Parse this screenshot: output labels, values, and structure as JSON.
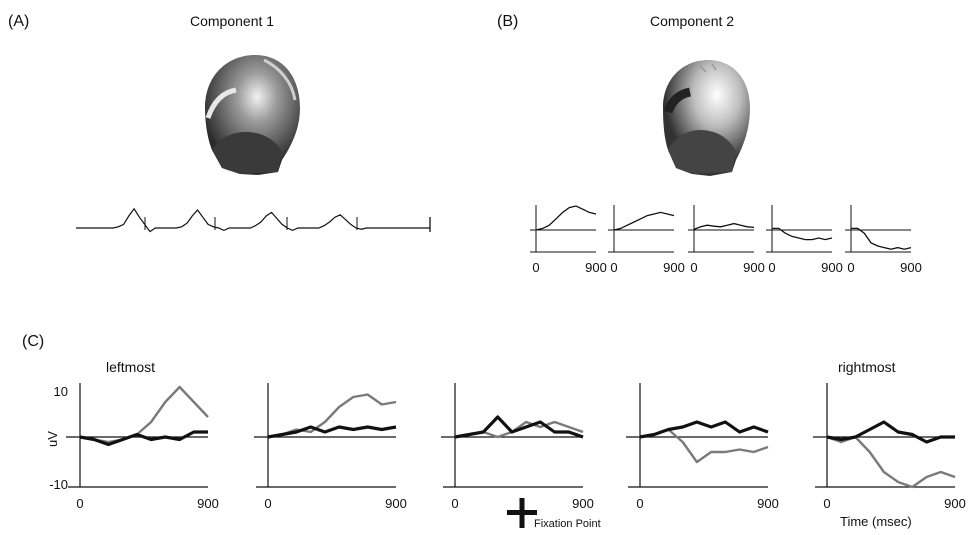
{
  "panels": {
    "a": {
      "label": "(A)",
      "title": "Component 1"
    },
    "b": {
      "label": "(B)",
      "title": "Component 2"
    },
    "c": {
      "label": "(C)",
      "left_label": "leftmost",
      "right_label": "rightmost",
      "ylabel": "uV",
      "y_max_label": "10",
      "y_min_label": "-10",
      "xlabel": "Time (msec)",
      "fixation_label": "Fixation Point"
    }
  },
  "tick_labels": {
    "x_start": "0",
    "x_end": "900"
  },
  "colors": {
    "ink": "#111111",
    "light_trace": "#7a7a7a"
  },
  "chart_data": [
    {
      "type": "line",
      "title": "Component 1",
      "series": [
        {
          "values": [
            0,
            0,
            0,
            0,
            0,
            0,
            0,
            0,
            0.1,
            0.3,
            1,
            1.6,
            0.9,
            0.3,
            -0.3,
            0,
            0,
            0,
            0,
            0,
            0.1,
            0.4,
            1,
            1.5,
            0.9,
            0.3,
            0.1,
            0,
            -0.2,
            0,
            0,
            0,
            0,
            0,
            0.2,
            0.5,
            1,
            1.3,
            0.8,
            0.3,
            0,
            -0.2,
            0,
            0,
            0,
            0,
            0,
            0.2,
            0.5,
            0.9,
            1.1,
            0.7,
            0.3,
            0,
            -0.1,
            0,
            0,
            0,
            0,
            0,
            0,
            0,
            0,
            0,
            0,
            0,
            0,
            0
          ]
        }
      ]
    },
    {
      "type": "line",
      "title": "Component 2",
      "x": [
        0,
        100,
        200,
        300,
        400,
        500,
        600,
        700,
        800,
        900
      ],
      "xlim": [
        0,
        900
      ],
      "series": [
        {
          "values": [
            0,
            0.5,
            1.5,
            3.5,
            5.5,
            7,
            7.5,
            6.5,
            5.5,
            5
          ]
        },
        {
          "values": [
            0,
            0.5,
            1.5,
            2.5,
            3.5,
            4.5,
            5,
            5.5,
            5,
            4.5
          ]
        },
        {
          "values": [
            0.2,
            1,
            1.5,
            1.2,
            1,
            1.5,
            2,
            1.5,
            1,
            0.8
          ]
        },
        {
          "values": [
            0.5,
            0.5,
            -1,
            -2,
            -2.5,
            -3,
            -3,
            -2.5,
            -3,
            -2.5
          ]
        },
        {
          "values": [
            0.5,
            0.5,
            -1,
            -4,
            -5,
            -5.5,
            -6,
            -5.5,
            -6,
            -5.5
          ]
        }
      ]
    },
    {
      "type": "line",
      "title": "",
      "xlabel": "Time (msec)",
      "ylabel": "uV",
      "x": [
        0,
        100,
        200,
        300,
        400,
        500,
        600,
        700,
        800,
        900
      ],
      "xlim": [
        0,
        900
      ],
      "ylim": [
        -10,
        10
      ],
      "panels": [
        {
          "series": [
            {
              "values": [
                0,
                -0.5,
                -1,
                -0.5,
                0.5,
                3,
                7,
                10,
                7,
                4
              ]
            },
            {
              "values": [
                0,
                -0.5,
                -1.5,
                -0.5,
                0.5,
                -0.5,
                0,
                -0.5,
                1,
                1
              ]
            }
          ]
        },
        {
          "series": [
            {
              "values": [
                0,
                0.5,
                1.5,
                1,
                3,
                6,
                8,
                8.5,
                6.5,
                7
              ]
            },
            {
              "values": [
                0,
                0.5,
                1,
                2,
                1,
                2,
                1.5,
                2,
                1.5,
                2
              ]
            }
          ]
        },
        {
          "series": [
            {
              "values": [
                0,
                0.5,
                1,
                0,
                1,
                3,
                2,
                3,
                2,
                1
              ]
            },
            {
              "values": [
                0,
                0.5,
                1,
                4,
                1,
                2,
                3,
                1,
                1,
                0
              ]
            }
          ]
        },
        {
          "series": [
            {
              "values": [
                0,
                0.5,
                1.5,
                -1,
                -5,
                -3,
                -3,
                -2.5,
                -3,
                -2
              ]
            },
            {
              "values": [
                0,
                0.5,
                1.5,
                2,
                3,
                2,
                3,
                1,
                2,
                1
              ]
            }
          ]
        },
        {
          "series": [
            {
              "values": [
                0,
                -1,
                0,
                -3,
                -7,
                -9,
                -10,
                -8,
                -7,
                -8
              ]
            },
            {
              "values": [
                0,
                -0.5,
                0,
                1.5,
                3,
                1,
                0.5,
                -1,
                0,
                0
              ]
            }
          ]
        }
      ]
    }
  ]
}
